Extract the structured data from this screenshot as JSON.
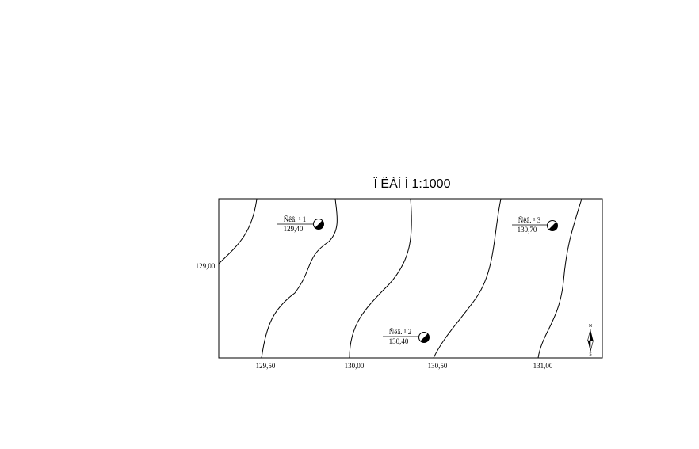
{
  "title": "Ï ËÀÍ Ì 1:1000",
  "contour_labels": [
    {
      "id": "c1",
      "text": "129,00"
    },
    {
      "id": "c2",
      "text": "129,50"
    },
    {
      "id": "c3",
      "text": "130,00"
    },
    {
      "id": "c4",
      "text": "130,50"
    },
    {
      "id": "c5",
      "text": "131,00"
    }
  ],
  "wells": [
    {
      "name": "Ñêâ. ¹ 1",
      "elevation": "129,40"
    },
    {
      "name": "Ñêâ. ¹ 2",
      "elevation": "130,40"
    },
    {
      "name": "Ñêâ. ¹ 3",
      "elevation": "130,70"
    }
  ],
  "north_arrow": {
    "north": "N",
    "south": "S"
  }
}
